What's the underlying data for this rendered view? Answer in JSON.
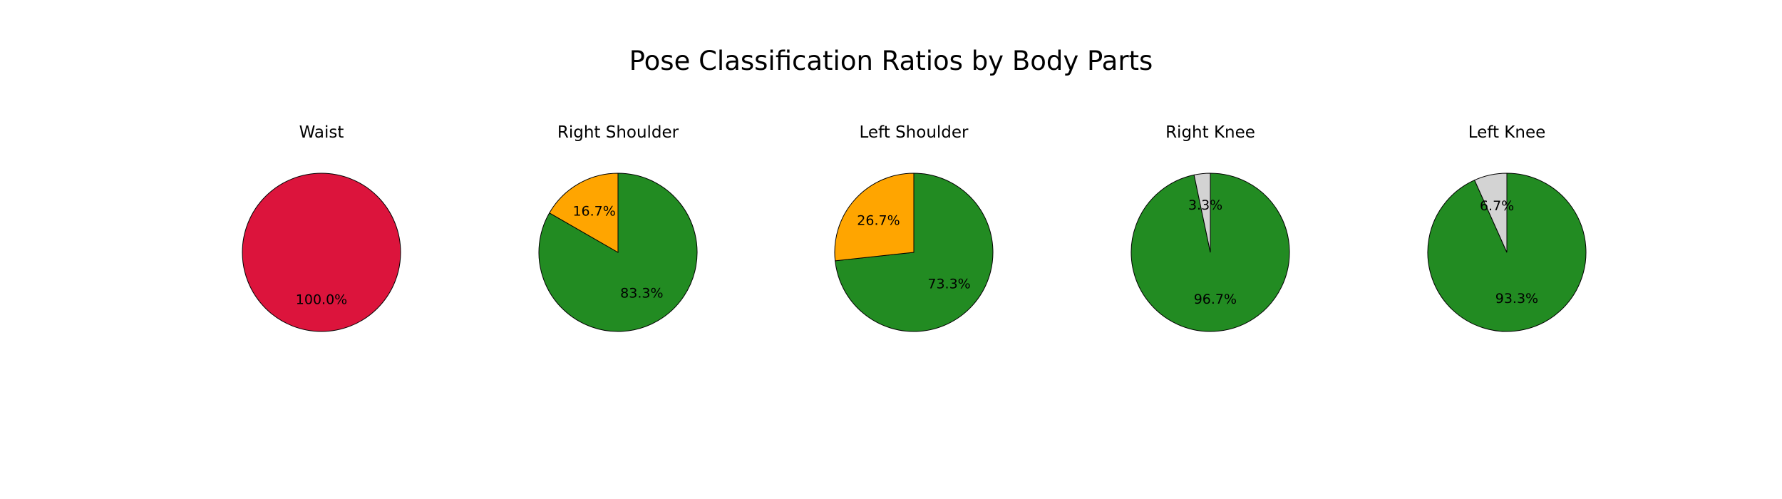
{
  "chart_data": {
    "type": "pie",
    "title": "Pose Classification Ratios by Body Parts",
    "colors": {
      "red": "#dc143c",
      "green": "#228b22",
      "orange": "#ffa500",
      "gray": "#d3d3d3",
      "edge": "#000000"
    },
    "pies": [
      {
        "title": "Waist",
        "slices": [
          {
            "value": 100.0,
            "color": "#dc143c",
            "label": "100.0%"
          }
        ]
      },
      {
        "title": "Right Shoulder",
        "slices": [
          {
            "value": 83.3,
            "color": "#228b22",
            "label": "83.3%"
          },
          {
            "value": 16.7,
            "color": "#ffa500",
            "label": "16.7%"
          }
        ]
      },
      {
        "title": "Left Shoulder",
        "slices": [
          {
            "value": 73.3,
            "color": "#228b22",
            "label": "73.3%"
          },
          {
            "value": 26.7,
            "color": "#ffa500",
            "label": "26.7%"
          }
        ]
      },
      {
        "title": "Right Knee",
        "slices": [
          {
            "value": 96.7,
            "color": "#228b22",
            "label": "96.7%"
          },
          {
            "value": 3.3,
            "color": "#d3d3d3",
            "label": "3.3%"
          }
        ]
      },
      {
        "title": "Left Knee",
        "slices": [
          {
            "value": 93.3,
            "color": "#228b22",
            "label": "93.3%"
          },
          {
            "value": 6.7,
            "color": "#d3d3d3",
            "label": "6.7%"
          }
        ]
      }
    ]
  }
}
